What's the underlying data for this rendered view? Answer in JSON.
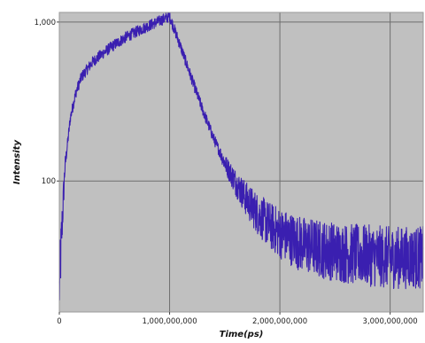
{
  "chart_data": {
    "type": "line",
    "title": "",
    "xlabel": "Time(ps)",
    "ylabel": "Intensity",
    "x_scale": "linear",
    "y_scale": "log",
    "xlim": [
      0,
      3300000000
    ],
    "ylim": [
      15,
      1150
    ],
    "x_ticks": [
      {
        "value": 0,
        "label": "0"
      },
      {
        "value": 1000000000,
        "label": "1,000,000,000"
      },
      {
        "value": 2000000000,
        "label": "2,000,000,000"
      },
      {
        "value": 3000000000,
        "label": "3,000,000,000"
      }
    ],
    "y_ticks": [
      {
        "value": 100,
        "label": "100"
      },
      {
        "value": 1000,
        "label": "1,000"
      }
    ],
    "grid": true,
    "legend": "none",
    "series": [
      {
        "color": "#3a1fb0",
        "noise": "high-frequency fluctuations around the trend, growing at low intensity",
        "points": [
          {
            "x": 0,
            "y": 20
          },
          {
            "x": 20000000,
            "y": 45
          },
          {
            "x": 50000000,
            "y": 120
          },
          {
            "x": 100000000,
            "y": 250
          },
          {
            "x": 150000000,
            "y": 360
          },
          {
            "x": 200000000,
            "y": 450
          },
          {
            "x": 300000000,
            "y": 560
          },
          {
            "x": 400000000,
            "y": 640
          },
          {
            "x": 500000000,
            "y": 720
          },
          {
            "x": 600000000,
            "y": 800
          },
          {
            "x": 700000000,
            "y": 870
          },
          {
            "x": 800000000,
            "y": 940
          },
          {
            "x": 900000000,
            "y": 1010
          },
          {
            "x": 980000000,
            "y": 1070
          },
          {
            "x": 1000000000,
            "y": 1090
          },
          {
            "x": 1100000000,
            "y": 700
          },
          {
            "x": 1200000000,
            "y": 440
          },
          {
            "x": 1300000000,
            "y": 280
          },
          {
            "x": 1400000000,
            "y": 185
          },
          {
            "x": 1500000000,
            "y": 130
          },
          {
            "x": 1600000000,
            "y": 98
          },
          {
            "x": 1700000000,
            "y": 76
          },
          {
            "x": 1800000000,
            "y": 62
          },
          {
            "x": 1900000000,
            "y": 53
          },
          {
            "x": 2000000000,
            "y": 47
          },
          {
            "x": 2200000000,
            "y": 40
          },
          {
            "x": 2400000000,
            "y": 37
          },
          {
            "x": 2600000000,
            "y": 35
          },
          {
            "x": 2800000000,
            "y": 34
          },
          {
            "x": 3000000000,
            "y": 33
          },
          {
            "x": 3200000000,
            "y": 33
          },
          {
            "x": 3300000000,
            "y": 33
          }
        ]
      }
    ]
  }
}
